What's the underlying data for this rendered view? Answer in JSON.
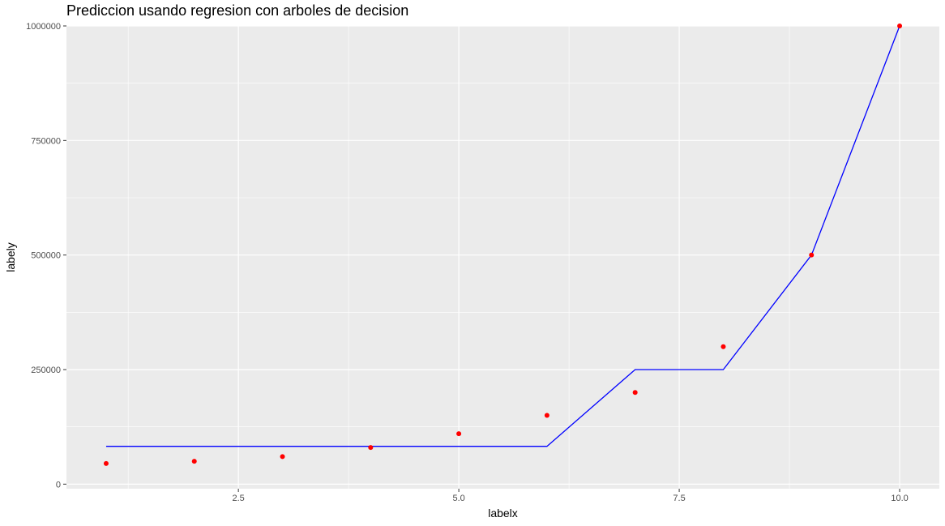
{
  "chart_data": {
    "type": "scatter",
    "title": "Prediccion usando regresion con arboles de decision",
    "xlabel": "labelx",
    "ylabel": "labely",
    "xlim": [
      0.55,
      10.45
    ],
    "ylim": [
      -10000,
      1000000
    ],
    "x_ticks": [
      2.5,
      5.0,
      7.5,
      10.0
    ],
    "x_tick_labels": [
      "2.5",
      "5.0",
      "7.5",
      "10.0"
    ],
    "y_ticks": [
      0,
      250000,
      500000,
      750000,
      1000000
    ],
    "y_tick_labels": [
      "0",
      "250000",
      "500000",
      "750000",
      "1000000"
    ],
    "grid": true,
    "background": "#ebebeb",
    "series": [
      {
        "kind": "points",
        "color": "#ff0000",
        "x": [
          1,
          2,
          3,
          4,
          5,
          6,
          7,
          8,
          9,
          10
        ],
        "y": [
          45000,
          50000,
          60000,
          80000,
          110000,
          150000,
          200000,
          300000,
          500000,
          1000000
        ]
      },
      {
        "kind": "line",
        "color": "#0000ff",
        "x": [
          1,
          6,
          7,
          8,
          9,
          10
        ],
        "y": [
          82500,
          82500,
          250000,
          250000,
          500000,
          1000000
        ]
      }
    ]
  }
}
